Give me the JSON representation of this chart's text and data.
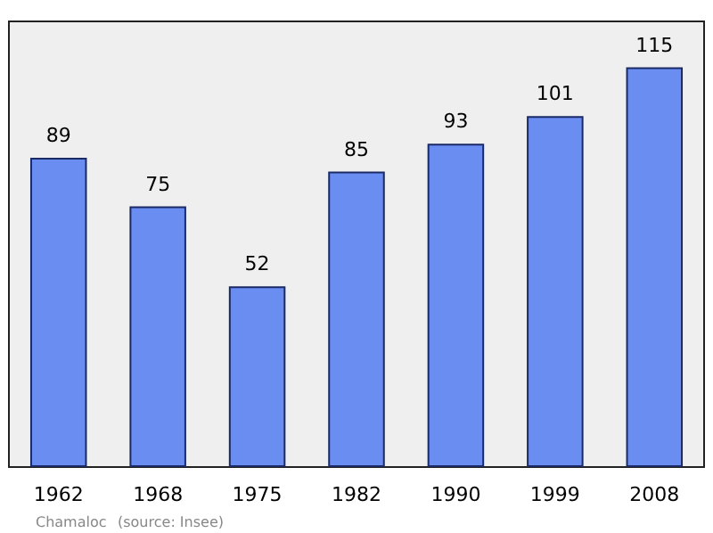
{
  "chart_data": {
    "type": "bar",
    "categories": [
      "1962",
      "1968",
      "1975",
      "1982",
      "1990",
      "1999",
      "2008"
    ],
    "values": [
      89,
      75,
      52,
      85,
      93,
      101,
      115
    ],
    "color": "#6a8df2",
    "data_labels": true,
    "grid": false,
    "annotations": [
      "Chamaloc",
      "(source: Insee)"
    ]
  }
}
